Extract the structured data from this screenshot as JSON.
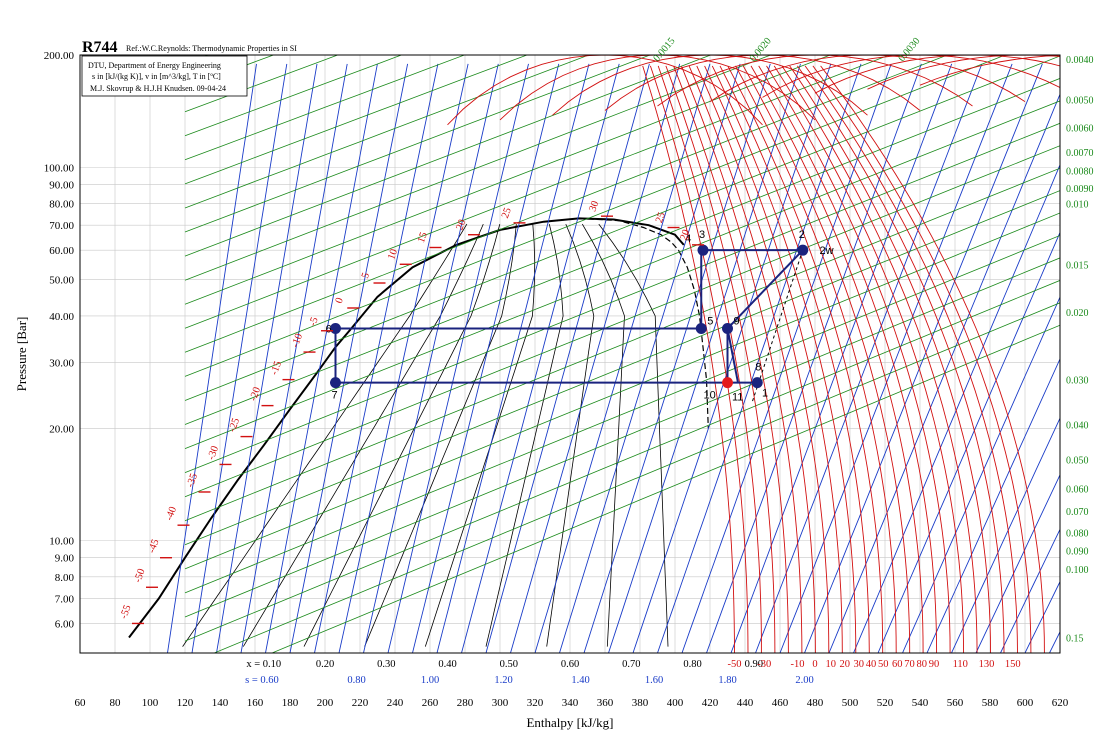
{
  "title": "R744",
  "reference": "Ref.:W.C.Reynolds: Thermodynamic Properties in SI",
  "info_box": [
    "DTU, Department of Energy Engineering",
    "s in [kJ/(kg K)], v in [m^3/kg], T in [ºC]",
    "M.J. Skovrup & H.J.H Knudsen. 09-04-24"
  ],
  "colors": {
    "isotherm": "#d21010",
    "isentrope": "#1a3cc8",
    "isochore": "#1b8a1b",
    "quality": "#000000",
    "cycle": "#1a237e",
    "highlight_point": "#e41a1c",
    "grid": "#c8c8c8"
  },
  "chart_data": {
    "type": "line",
    "title": "R744",
    "xlabel": "Enthalpy [kJ/kg]",
    "ylabel": "Pressure [Bar]",
    "xlim": [
      60,
      620
    ],
    "ylim": [
      5,
      200
    ],
    "y_scale": "log",
    "grid": true,
    "x_ticks": [
      "60",
      "80",
      "100",
      "120",
      "140",
      "160",
      "180",
      "200",
      "220",
      "240",
      "260",
      "280",
      "300",
      "320",
      "340",
      "360",
      "380",
      "400",
      "420",
      "440",
      "460",
      "480",
      "500",
      "520",
      "540",
      "560",
      "580",
      "600",
      "620"
    ],
    "y_ticks": [
      {
        "label": "200.00",
        "value": 200
      },
      {
        "label": "100.00",
        "value": 100
      },
      {
        "label": "90.00",
        "value": 90
      },
      {
        "label": "80.00",
        "value": 80
      },
      {
        "label": "70.00",
        "value": 70
      },
      {
        "label": "60.00",
        "value": 60
      },
      {
        "label": "50.00",
        "value": 50
      },
      {
        "label": "40.00",
        "value": 40
      },
      {
        "label": "30.00",
        "value": 30
      },
      {
        "label": "20.00",
        "value": 20
      },
      {
        "label": "10.00",
        "value": 10
      },
      {
        "label": "9.00",
        "value": 9
      },
      {
        "label": "8.00",
        "value": 8
      },
      {
        "label": "7.00",
        "value": 7
      },
      {
        "label": "6.00",
        "value": 6
      }
    ],
    "quality_labels": [
      {
        "text": "x = 0.10",
        "h": 165
      },
      {
        "text": "0.20",
        "h": 200
      },
      {
        "text": "0.30",
        "h": 235
      },
      {
        "text": "0.40",
        "h": 270
      },
      {
        "text": "0.50",
        "h": 305
      },
      {
        "text": "0.60",
        "h": 340
      },
      {
        "text": "0.70",
        "h": 375
      },
      {
        "text": "0.80",
        "h": 410
      },
      {
        "text": "0.90",
        "h": 445
      }
    ],
    "entropy_labels": [
      {
        "text": "s = 0.60",
        "h": 164
      },
      {
        "text": "0.80",
        "h": 218
      },
      {
        "text": "1.00",
        "h": 260
      },
      {
        "text": "1.20",
        "h": 302
      },
      {
        "text": "1.40",
        "h": 346
      },
      {
        "text": "1.60",
        "h": 388
      },
      {
        "text": "1.80",
        "h": 430
      },
      {
        "text": "2.00",
        "h": 474
      }
    ],
    "bottom_temperature_labels": [
      {
        "text": "-50",
        "h": 434
      },
      {
        "text": "-30",
        "h": 451
      },
      {
        "text": "-10",
        "h": 470
      },
      {
        "text": "0",
        "h": 480
      },
      {
        "text": "10",
        "h": 489
      },
      {
        "text": "20",
        "h": 497
      },
      {
        "text": "30",
        "h": 505
      },
      {
        "text": "40",
        "h": 512
      },
      {
        "text": "50",
        "h": 519
      },
      {
        "text": "60",
        "h": 527
      },
      {
        "text": "70",
        "h": 534
      },
      {
        "text": "80",
        "h": 541
      },
      {
        "text": "90",
        "h": 548
      },
      {
        "text": "110",
        "h": 563
      },
      {
        "text": "130",
        "h": 578
      },
      {
        "text": "150",
        "h": 593
      }
    ],
    "right_volume_labels": [
      {
        "text": "0.0040",
        "p": 195
      },
      {
        "text": "0.0050",
        "p": 152
      },
      {
        "text": "0.0060",
        "p": 128
      },
      {
        "text": "0.0070",
        "p": 110
      },
      {
        "text": "0.0080",
        "p": 98
      },
      {
        "text": "0.0090",
        "p": 88
      },
      {
        "text": "0.010",
        "p": 80
      },
      {
        "text": "0.015",
        "p": 55
      },
      {
        "text": "0.020",
        "p": 41
      },
      {
        "text": "0.030",
        "p": 27
      },
      {
        "text": "0.040",
        "p": 20.5
      },
      {
        "text": "0.050",
        "p": 16.5
      },
      {
        "text": "0.060",
        "p": 13.8
      },
      {
        "text": "0.070",
        "p": 12
      },
      {
        "text": "0.080",
        "p": 10.5
      },
      {
        "text": "0.090",
        "p": 9.4
      },
      {
        "text": "0.100",
        "p": 8.4
      },
      {
        "text": "0.15",
        "p": 5.5
      }
    ],
    "top_volume_labels": [
      {
        "text": "0.0015",
        "h": 390
      },
      {
        "text": "0.0020",
        "h": 445
      },
      {
        "text": "0.0030",
        "h": 530
      }
    ],
    "saturation_temperature_labels": [
      "-55",
      "-50",
      "-45",
      "-40",
      "-35",
      "-30",
      "-25",
      "-20",
      "-15",
      "-10",
      "-5",
      "0",
      "5",
      "10",
      "15",
      "20",
      "25",
      "30",
      "25",
      "20"
    ],
    "series": [
      {
        "name": "cycle",
        "points": [
          {
            "label": "1",
            "h": 444,
            "p": 26.5
          },
          {
            "label": "2",
            "h": 473,
            "p": 60
          },
          {
            "label": "2w",
            "h": 478,
            "p": 60
          },
          {
            "label": "3",
            "h": 416,
            "p": 60
          },
          {
            "label": "4",
            "h": 415,
            "p": 60
          },
          {
            "label": "5",
            "h": 415,
            "p": 37
          },
          {
            "label": "6",
            "h": 206,
            "p": 37
          },
          {
            "label": "7",
            "h": 206,
            "p": 26.5
          },
          {
            "label": "8",
            "h": 447,
            "p": 26.5
          },
          {
            "label": "9",
            "h": 430,
            "p": 37
          },
          {
            "label": "10",
            "h": 430,
            "p": 26.5
          },
          {
            "label": "11",
            "h": 436,
            "p": 26.5
          }
        ]
      }
    ]
  }
}
